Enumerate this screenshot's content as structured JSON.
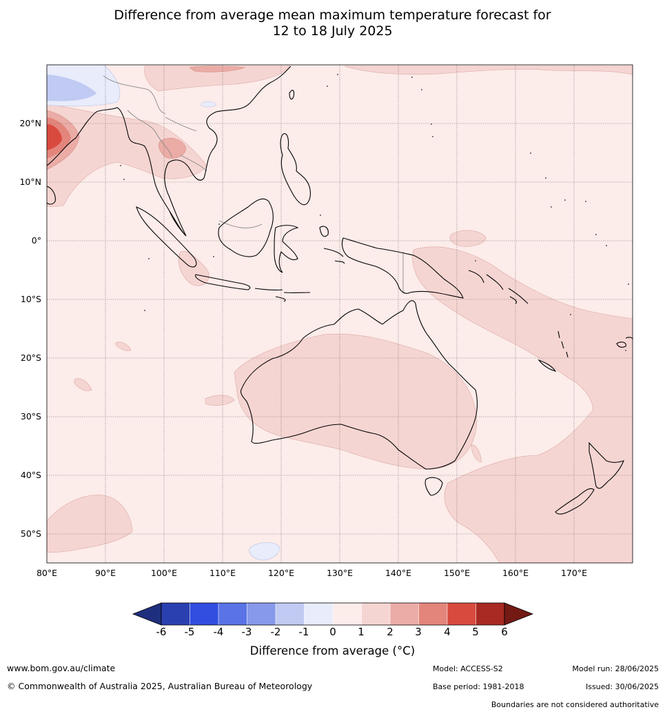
{
  "title_line1": "Difference from average mean maximum temperature forecast for",
  "title_line2": "12 to 18 July 2025",
  "lat_labels": [
    "20°N",
    "10°N",
    "0°",
    "10°S",
    "20°S",
    "30°S",
    "40°S",
    "50°S"
  ],
  "lon_labels": [
    "80°E",
    "90°E",
    "100°E",
    "110°E",
    "120°E",
    "130°E",
    "140°E",
    "150°E",
    "160°E",
    "170°E"
  ],
  "colorbar": {
    "ticks": [
      "-6",
      "-5",
      "-4",
      "-3",
      "-2",
      "-1",
      "0",
      "1",
      "2",
      "3",
      "4",
      "5",
      "6"
    ],
    "colors": [
      "#1f2f7e",
      "#2b40b0",
      "#314ee0",
      "#5a73e6",
      "#8799ea",
      "#c0caf2",
      "#e8ecfb",
      "#fcecea",
      "#f5d5d2",
      "#ebaca6",
      "#e4857c",
      "#d94a3e",
      "#a82a22",
      "#731a14"
    ],
    "title": "Difference from average (°C)"
  },
  "footer": {
    "url": "www.bom.gov.au/climate",
    "copyright": "© Commonwealth of Australia 2025, Australian Bureau of Meteorology",
    "model": "Model: ACCESS-S2",
    "model_run": "Model run: 28/06/2025",
    "base_period": "Base period: 1981-2018",
    "issued": "Issued: 30/06/2025",
    "disclaimer": "Boundaries are not considered authoritative"
  }
}
